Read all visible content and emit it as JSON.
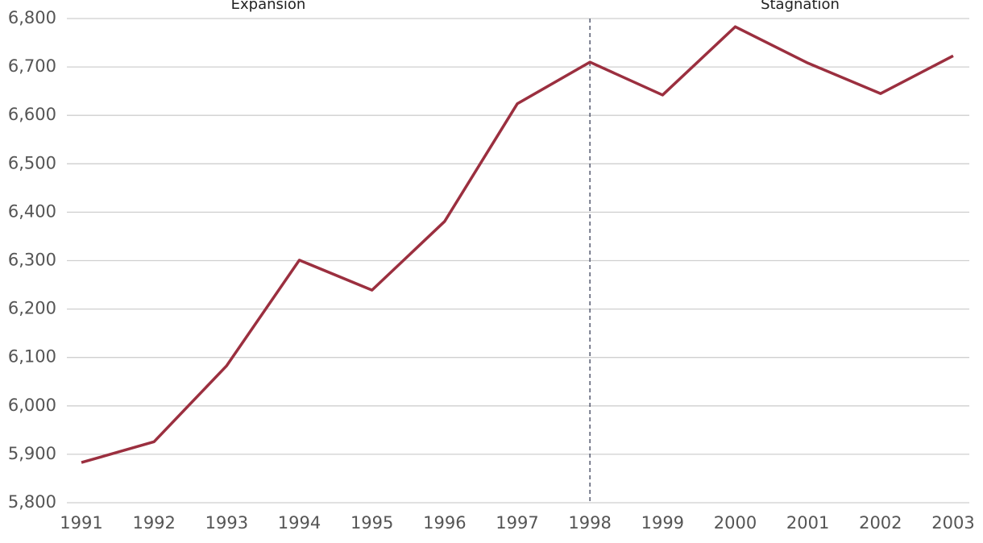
{
  "chart_data": {
    "type": "line",
    "x": [
      1991,
      1992,
      1993,
      1994,
      1995,
      1996,
      1997,
      1998,
      1999,
      2000,
      2001,
      2002,
      2003
    ],
    "series": [
      {
        "color": "#9b2f3f",
        "values": [
          5883,
          5926,
          6083,
          6301,
          6239,
          6381,
          6624,
          6710,
          6642,
          6783,
          6708,
          6645,
          6723
        ]
      }
    ],
    "xlim": [
      1990.8,
      2003.2
    ],
    "xticks": [
      1991,
      1992,
      1993,
      1994,
      1995,
      1996,
      1997,
      1998,
      1999,
      2000,
      2001,
      2002,
      2003
    ],
    "ylim": [
      5800,
      6800
    ],
    "yticks": [
      {
        "value": 5800,
        "label": "5,800"
      },
      {
        "value": 5900,
        "label": "5,900"
      },
      {
        "value": 6000,
        "label": "6,000"
      },
      {
        "value": 6100,
        "label": "6,100"
      },
      {
        "value": 6200,
        "label": "6,200"
      },
      {
        "value": 6300,
        "label": "6,300"
      },
      {
        "value": 6400,
        "label": "6,400"
      },
      {
        "value": 6500,
        "label": "6,500"
      },
      {
        "value": 6600,
        "label": "6,600"
      },
      {
        "value": 6700,
        "label": "6,700"
      },
      {
        "value": 6800,
        "label": "6,800"
      }
    ],
    "grid": true,
    "divider_x": 1998,
    "annotations": [
      "Expansion",
      "Stagnation"
    ]
  }
}
